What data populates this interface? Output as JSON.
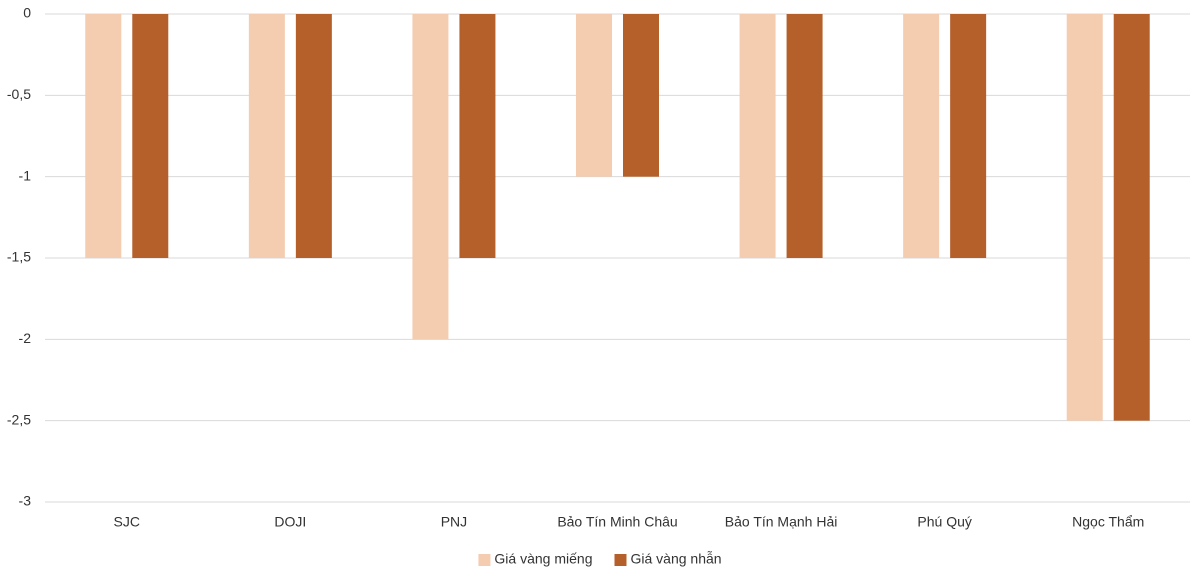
{
  "chart_data": {
    "type": "bar",
    "categories": [
      "SJC",
      "DOJI",
      "PNJ",
      "Bảo Tín Minh Châu",
      "Bảo Tín Mạnh Hải",
      "Phú Quý",
      "Ngọc Thẩm"
    ],
    "series": [
      {
        "name": "Giá vàng miếng",
        "color": "#f4ccaf",
        "values": [
          -1.5,
          -1.5,
          -2,
          -1,
          -1.5,
          -1.5,
          -2.5
        ]
      },
      {
        "name": "Giá vàng nhẫn",
        "color": "#b55f2a",
        "values": [
          -1.5,
          -1.5,
          -1.5,
          -1,
          -1.5,
          -1.5,
          -2.5
        ]
      }
    ],
    "ylim": [
      -3,
      0
    ],
    "yticks": [
      0,
      {
        "value": -0.5,
        "label": "-0,5"
      },
      -1,
      {
        "value": -1.5,
        "label": "-1,5"
      },
      -2,
      {
        "value": -2.5,
        "label": "-2,5"
      },
      -3
    ],
    "grid": true,
    "legend": "bottom"
  }
}
